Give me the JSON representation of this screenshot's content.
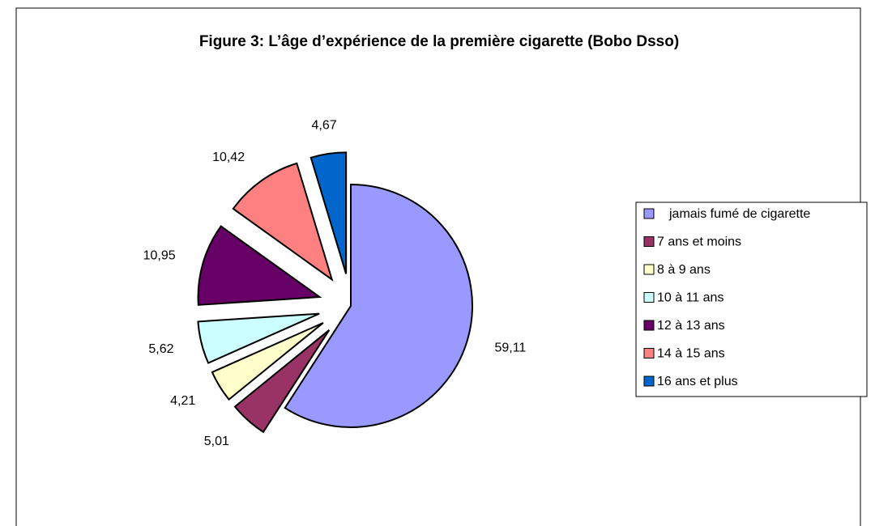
{
  "chart_data": {
    "type": "pie",
    "title": "Figure 3: L’âge  d’expérience de la première cigarette (Bobo Dsso)",
    "categories": [
      "jamais fumé de cigarette",
      "7 ans et moins",
      "8 à 9 ans",
      "10 à 11 ans",
      "12 à 13 ans",
      "14 à 15 ans",
      "16 ans et plus"
    ],
    "values": [
      59.11,
      5.01,
      4.21,
      5.62,
      10.95,
      10.42,
      4.67
    ],
    "value_labels": [
      "59,11",
      "5,01",
      "4,21",
      "5,62",
      "10,95",
      "10,42",
      "4,67"
    ],
    "colors": [
      "#9999ff",
      "#993366",
      "#ffffcc",
      "#ccffff",
      "#660066",
      "#ff8080",
      "#0066cc"
    ],
    "legend": "right"
  }
}
